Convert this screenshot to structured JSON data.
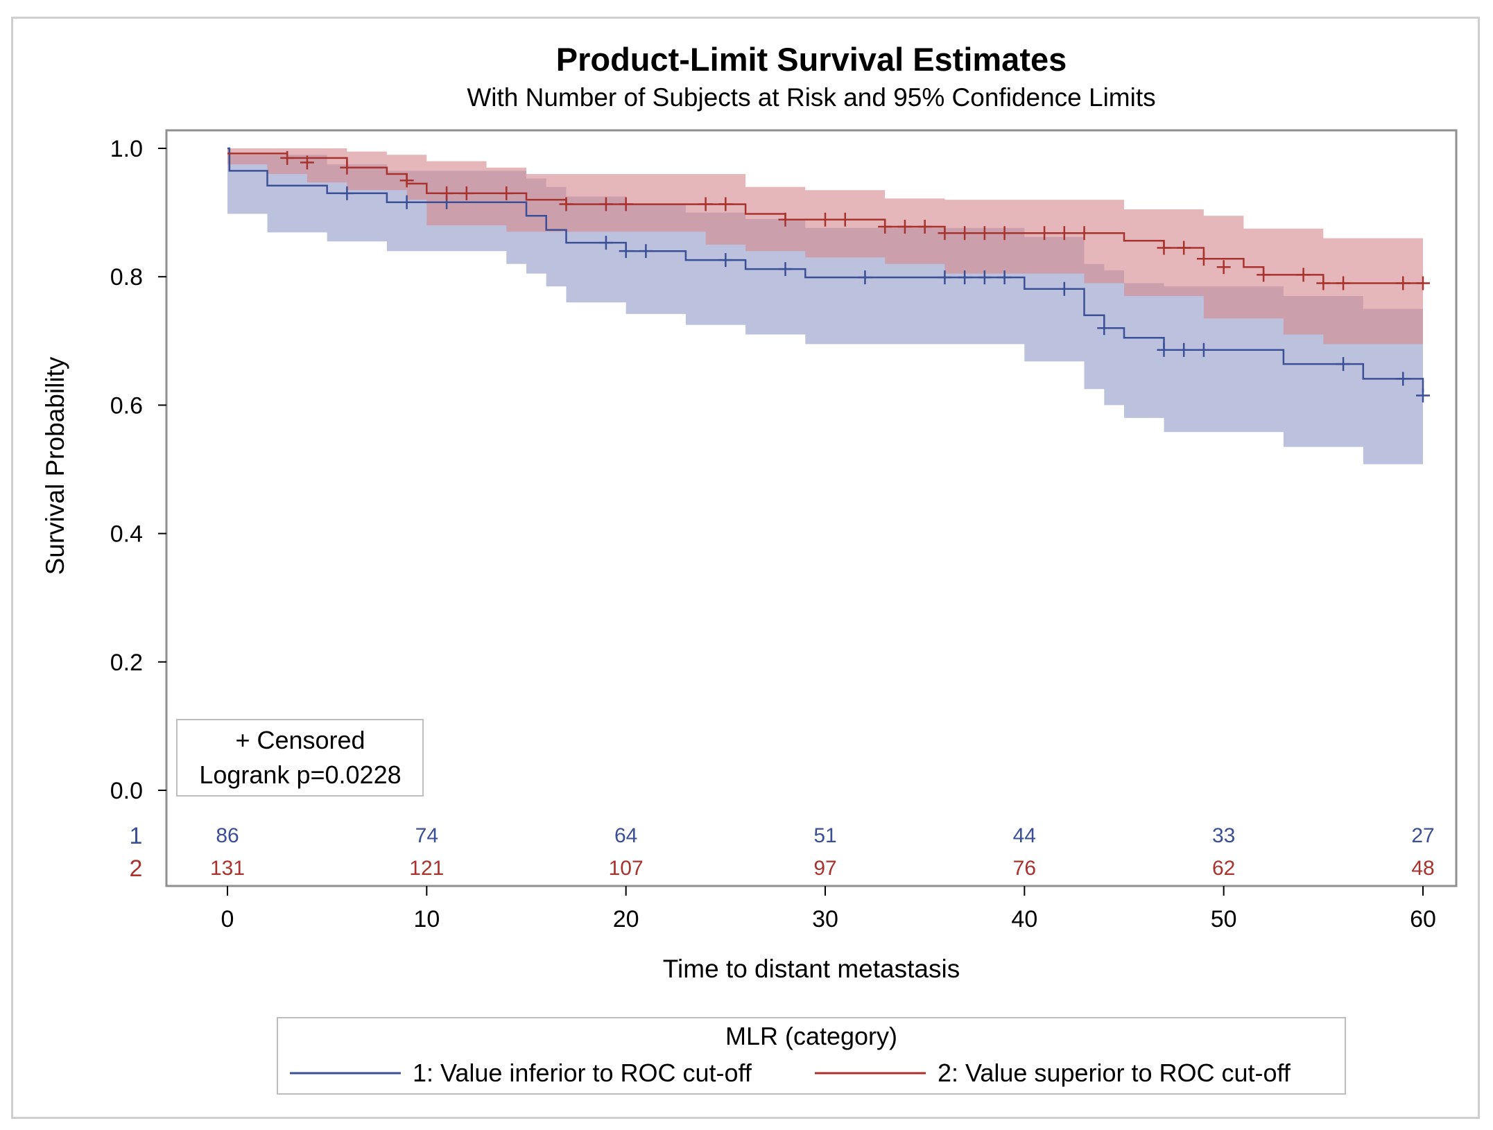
{
  "chart_data": {
    "type": "line",
    "title": "Product-Limit Survival Estimates",
    "subtitle": "With Number of Subjects at Risk and 95% Confidence Limits",
    "xlabel": "Time to distant metastasis",
    "ylabel": "Survival Probability",
    "xlim": [
      0,
      60
    ],
    "ylim": [
      0,
      1
    ],
    "xticks": [
      0,
      10,
      20,
      30,
      40,
      50,
      60
    ],
    "yticks": [
      0.0,
      0.2,
      0.4,
      0.6,
      0.8,
      1.0
    ],
    "xtick_labels": [
      "0",
      "10",
      "20",
      "30",
      "40",
      "50",
      "60"
    ],
    "ytick_labels": [
      "0.0",
      "0.2",
      "0.4",
      "0.6",
      "0.8",
      "1.0"
    ],
    "inset_box": {
      "line1": "+ Censored",
      "line2": "Logrank p=0.0228"
    },
    "legend": {
      "title": "MLR (category)",
      "placement": "bottom"
    },
    "at_risk_times": [
      0,
      10,
      20,
      30,
      40,
      50,
      60
    ],
    "series": [
      {
        "name": "1: Value inferior to ROC cut-off",
        "label": "1",
        "color": "#3b4f96",
        "band_color": "#b8bedb",
        "at_risk": [
          "86",
          "74",
          "64",
          "51",
          "44",
          "33",
          "27"
        ],
        "steps": [
          [
            0,
            1.0
          ],
          [
            0.1,
            0.965
          ],
          [
            2,
            0.942
          ],
          [
            5,
            0.93
          ],
          [
            8,
            0.916
          ],
          [
            15,
            0.895
          ],
          [
            16,
            0.873
          ],
          [
            17,
            0.853
          ],
          [
            20,
            0.84
          ],
          [
            23,
            0.826
          ],
          [
            26,
            0.812
          ],
          [
            29,
            0.799
          ],
          [
            40,
            0.781
          ],
          [
            43,
            0.74
          ],
          [
            44,
            0.72
          ],
          [
            45,
            0.705
          ],
          [
            47,
            0.686
          ],
          [
            53,
            0.664
          ],
          [
            57,
            0.641
          ],
          [
            60,
            0.62
          ]
        ],
        "lower": [
          [
            0,
            0.898
          ],
          [
            2,
            0.869
          ],
          [
            5,
            0.855
          ],
          [
            8,
            0.84
          ],
          [
            14,
            0.82
          ],
          [
            15,
            0.805
          ],
          [
            16,
            0.785
          ],
          [
            17,
            0.76
          ],
          [
            20,
            0.742
          ],
          [
            23,
            0.725
          ],
          [
            26,
            0.71
          ],
          [
            29,
            0.695
          ],
          [
            40,
            0.668
          ],
          [
            43,
            0.625
          ],
          [
            44,
            0.6
          ],
          [
            45,
            0.58
          ],
          [
            47,
            0.558
          ],
          [
            53,
            0.535
          ],
          [
            57,
            0.508
          ],
          [
            60,
            0.508
          ]
        ],
        "upper": [
          [
            0,
            1.0
          ],
          [
            0.1,
            0.99
          ],
          [
            2,
            0.99
          ],
          [
            5,
            0.975
          ],
          [
            8,
            0.965
          ],
          [
            15,
            0.953
          ],
          [
            16,
            0.94
          ],
          [
            17,
            0.925
          ],
          [
            20,
            0.912
          ],
          [
            23,
            0.9
          ],
          [
            26,
            0.89
          ],
          [
            29,
            0.876
          ],
          [
            40,
            0.862
          ],
          [
            43,
            0.82
          ],
          [
            44,
            0.81
          ],
          [
            45,
            0.79
          ],
          [
            47,
            0.785
          ],
          [
            53,
            0.77
          ],
          [
            57,
            0.75
          ],
          [
            60,
            0.75
          ]
        ],
        "censored": [
          [
            6,
            0.93
          ],
          [
            9,
            0.916
          ],
          [
            11,
            0.916
          ],
          [
            19,
            0.853
          ],
          [
            20,
            0.84
          ],
          [
            21,
            0.84
          ],
          [
            25,
            0.826
          ],
          [
            28,
            0.812
          ],
          [
            32,
            0.799
          ],
          [
            36,
            0.799
          ],
          [
            37,
            0.799
          ],
          [
            38,
            0.799
          ],
          [
            39,
            0.799
          ],
          [
            42,
            0.781
          ],
          [
            44,
            0.72
          ],
          [
            47,
            0.686
          ],
          [
            48,
            0.686
          ],
          [
            49,
            0.686
          ],
          [
            56,
            0.664
          ],
          [
            59,
            0.641
          ],
          [
            60,
            0.615
          ]
        ]
      },
      {
        "name": "2: Value superior to ROC cut-off",
        "label": "2",
        "color": "#a8322d",
        "band_color": "#d68a8f",
        "at_risk": [
          "131",
          "121",
          "107",
          "97",
          "76",
          "62",
          "48"
        ],
        "steps": [
          [
            0,
            0.992
          ],
          [
            3,
            0.985
          ],
          [
            6,
            0.97
          ],
          [
            8,
            0.96
          ],
          [
            9,
            0.945
          ],
          [
            10,
            0.93
          ],
          [
            15,
            0.92
          ],
          [
            17,
            0.913
          ],
          [
            26,
            0.898
          ],
          [
            28,
            0.889
          ],
          [
            33,
            0.878
          ],
          [
            36,
            0.868
          ],
          [
            45,
            0.856
          ],
          [
            47,
            0.845
          ],
          [
            49,
            0.828
          ],
          [
            51,
            0.815
          ],
          [
            52,
            0.803
          ],
          [
            55,
            0.79
          ],
          [
            60,
            0.79
          ]
        ],
        "lower": [
          [
            0,
            0.975
          ],
          [
            2,
            0.96
          ],
          [
            4,
            0.947
          ],
          [
            6,
            0.935
          ],
          [
            9,
            0.92
          ],
          [
            10,
            0.88
          ],
          [
            14,
            0.87
          ],
          [
            17,
            0.87
          ],
          [
            24,
            0.85
          ],
          [
            26,
            0.84
          ],
          [
            29,
            0.83
          ],
          [
            33,
            0.82
          ],
          [
            36,
            0.805
          ],
          [
            43,
            0.79
          ],
          [
            45,
            0.77
          ],
          [
            49,
            0.735
          ],
          [
            53,
            0.71
          ],
          [
            55,
            0.695
          ],
          [
            60,
            0.695
          ]
        ],
        "upper": [
          [
            0,
            1.0
          ],
          [
            6,
            0.995
          ],
          [
            8,
            0.99
          ],
          [
            10,
            0.98
          ],
          [
            13,
            0.97
          ],
          [
            15,
            0.96
          ],
          [
            17,
            0.96
          ],
          [
            26,
            0.94
          ],
          [
            29,
            0.935
          ],
          [
            33,
            0.922
          ],
          [
            36,
            0.92
          ],
          [
            41,
            0.92
          ],
          [
            45,
            0.905
          ],
          [
            49,
            0.895
          ],
          [
            51,
            0.875
          ],
          [
            55,
            0.86
          ],
          [
            60,
            0.86
          ]
        ],
        "censored": [
          [
            3,
            0.985
          ],
          [
            4,
            0.978
          ],
          [
            6,
            0.97
          ],
          [
            9,
            0.95
          ],
          [
            11,
            0.93
          ],
          [
            12,
            0.93
          ],
          [
            14,
            0.93
          ],
          [
            17,
            0.913
          ],
          [
            19,
            0.913
          ],
          [
            20,
            0.913
          ],
          [
            24,
            0.913
          ],
          [
            25,
            0.913
          ],
          [
            28,
            0.889
          ],
          [
            30,
            0.889
          ],
          [
            31,
            0.889
          ],
          [
            33,
            0.878
          ],
          [
            34,
            0.878
          ],
          [
            35,
            0.878
          ],
          [
            36,
            0.868
          ],
          [
            37,
            0.868
          ],
          [
            38,
            0.868
          ],
          [
            39,
            0.868
          ],
          [
            41,
            0.868
          ],
          [
            42,
            0.868
          ],
          [
            43,
            0.868
          ],
          [
            47,
            0.845
          ],
          [
            48,
            0.845
          ],
          [
            49,
            0.828
          ],
          [
            50,
            0.815
          ],
          [
            52,
            0.803
          ],
          [
            54,
            0.803
          ],
          [
            55,
            0.79
          ],
          [
            56,
            0.79
          ],
          [
            59,
            0.79
          ],
          [
            60,
            0.79
          ]
        ]
      }
    ]
  }
}
